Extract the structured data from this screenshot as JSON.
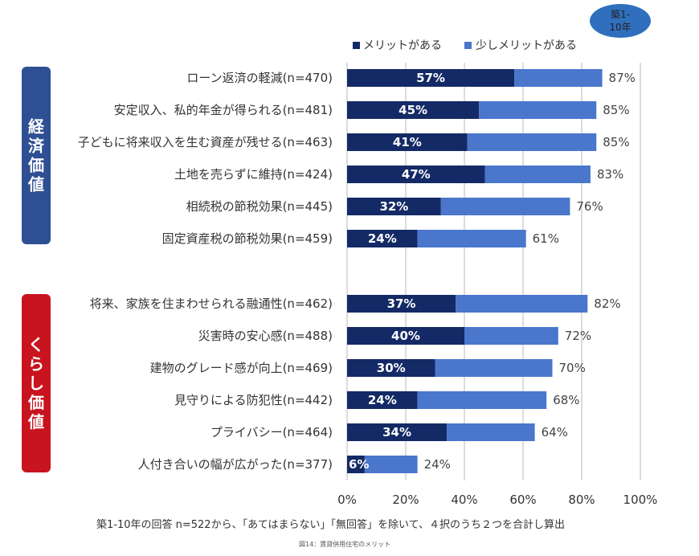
{
  "badge": {
    "line1": "築1-",
    "line2": "10年"
  },
  "legend": {
    "series1": "メリットがある",
    "series2": "少しメリットがある"
  },
  "groups": [
    {
      "label_chars": [
        "経",
        "済",
        "価",
        "値"
      ],
      "color": "#2e4f93"
    },
    {
      "label_chars": [
        "く",
        "ら",
        "し",
        "価",
        "値"
      ],
      "color": "#c8141e"
    }
  ],
  "note": "築1-10年の回答 n=522から、「あてはまらない」「無回答」を除いて、４択のうち２つを合計し算出",
  "caption": "図14：賃貸併用住宅のメリット",
  "colors": {
    "series1": "#142a66",
    "series2": "#4a76cc",
    "grid": "#b8b8b8"
  },
  "chart_data": {
    "type": "bar",
    "orientation": "horizontal",
    "stacked": true,
    "categories": [
      "ローン返済の軽減(n=470)",
      "安定収入、私的年金が得られる(n=481)",
      "子どもに将来収入を生む資産が残せる(n=463)",
      "土地を売らずに維持(n=424)",
      "相続税の節税効果(n=445)",
      "固定資産税の節税効果(n=459)",
      "将来、家族を住まわせられる融通性(n=462)",
      "災害時の安心感(n=488)",
      "建物のグレード感が向上(n=469)",
      "見守りによる防犯性(n=442)",
      "プライバシー(n=464)",
      "人付き合いの幅が広がった(n=377)"
    ],
    "series": [
      {
        "name": "メリットがある",
        "values": [
          57,
          45,
          41,
          47,
          32,
          24,
          37,
          40,
          30,
          24,
          34,
          6
        ],
        "labels": [
          "57%",
          "45%",
          "41%",
          "47%",
          "32%",
          "24%",
          "37%",
          "40%",
          "30%",
          "24%",
          "34%",
          "6%"
        ]
      },
      {
        "name": "少しメリットがある",
        "values": [
          30,
          40,
          44,
          36,
          44,
          37,
          45,
          32,
          40,
          44,
          30,
          18
        ]
      }
    ],
    "totals": [
      87,
      85,
      85,
      83,
      76,
      61,
      82,
      72,
      70,
      68,
      64,
      24
    ],
    "total_labels": [
      "87%",
      "85%",
      "85%",
      "83%",
      "76%",
      "61%",
      "82%",
      "72%",
      "70%",
      "68%",
      "64%",
      "24%"
    ],
    "xticks": [
      "0%",
      "20%",
      "40%",
      "60%",
      "80%",
      "100%"
    ],
    "xlim": [
      0,
      100
    ],
    "grid": true,
    "legend_position": "top"
  }
}
